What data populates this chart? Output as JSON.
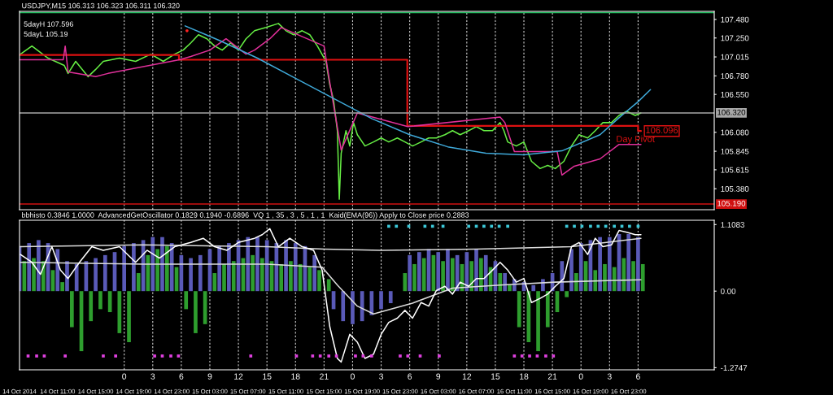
{
  "chart_data": [
    {
      "type": "line",
      "title": "USDJPY,M15 106.313 106.323 106.311 106.320",
      "annotations": [
        "5dayH 107.596",
        "5dayL 105.19",
        {
          "text": "106.096",
          "x": "2014-10-17T00:18",
          "y": 106.096
        }
      ],
      "xlim": [
        "2014-10-14T07:00",
        "2014-10-17T08:00"
      ],
      "ylim": [
        105.12,
        107.58
      ],
      "tick_labels": "y",
      "grid": "x",
      "yticks": [
        {
          "value": 107.48,
          "label": "107.480"
        },
        {
          "value": 107.25,
          "label": "107.250"
        },
        {
          "value": 107.015,
          "label": "107.015"
        },
        {
          "value": 106.78,
          "label": "106.780"
        },
        {
          "value": 106.55,
          "label": "106.550"
        },
        {
          "value": 106.08,
          "label": "106.080"
        },
        {
          "value": 105.845,
          "label": "105.845"
        },
        {
          "value": 105.615,
          "label": "105.615"
        },
        {
          "value": 105.38,
          "label": "105.380"
        }
      ],
      "ref_lines": [
        {
          "axis": "y",
          "value": 106.32,
          "label": "106.320",
          "color": "#a8a8a8"
        },
        {
          "axis": "y",
          "value": 105.19,
          "label": "105.190",
          "color": "#d01010"
        },
        {
          "axis": "y",
          "value": 107.565,
          "color": "#20c060"
        }
      ],
      "series": [
        {
          "color": "#66ee44",
          "x": [
            "2014-10-14T07:06",
            "2014-10-14T08:18",
            "2014-10-14T10:00",
            "2014-10-14T11:42",
            "2014-10-14T12:06",
            "2014-10-14T12:54",
            "2014-10-14T14:12",
            "2014-10-14T15:00",
            "2014-10-14T15:48",
            "2014-10-14T17:30",
            "2014-10-14T19:12",
            "2014-10-14T20:48",
            "2014-10-14T22:06",
            "2014-10-14T23:18",
            "2014-10-15T00:12",
            "2014-10-15T01:00",
            "2014-10-15T01:48",
            "2014-10-15T02:42",
            "2014-10-15T03:30",
            "2014-10-15T04:18",
            "2014-10-15T05:12",
            "2014-10-15T06:00",
            "2014-10-15T06:48",
            "2014-10-15T07:42",
            "2014-10-15T08:54",
            "2014-10-15T10:12",
            "2014-10-15T11:00",
            "2014-10-15T11:48",
            "2014-10-15T12:42",
            "2014-10-15T13:30",
            "2014-10-15T14:18",
            "2014-10-15T15:12",
            "2014-10-15T15:36",
            "2014-10-15T16:00",
            "2014-10-15T16:24",
            "2014-10-15T16:36",
            "2014-10-15T16:48",
            "2014-10-15T17:18",
            "2014-10-15T17:42",
            "2014-10-15T18:06",
            "2014-10-15T18:30",
            "2014-10-15T19:18",
            "2014-10-15T20:12",
            "2014-10-15T21:00",
            "2014-10-15T21:48",
            "2014-10-15T22:42",
            "2014-10-15T23:30",
            "2014-10-16T00:18",
            "2014-10-16T01:12",
            "2014-10-16T02:00",
            "2014-10-16T02:48",
            "2014-10-16T03:42",
            "2014-10-16T04:30",
            "2014-10-16T05:18",
            "2014-10-16T06:12",
            "2014-10-16T07:00",
            "2014-10-16T07:48",
            "2014-10-16T08:42",
            "2014-10-16T09:30",
            "2014-10-16T09:54",
            "2014-10-16T10:18",
            "2014-10-16T11:12",
            "2014-10-16T12:00",
            "2014-10-16T12:48",
            "2014-10-16T13:42",
            "2014-10-16T14:30",
            "2014-10-16T15:18",
            "2014-10-16T16:12",
            "2014-10-16T17:00",
            "2014-10-16T17:48",
            "2014-10-16T18:42",
            "2014-10-16T19:30",
            "2014-10-16T20:18",
            "2014-10-16T21:12",
            "2014-10-16T22:00",
            "2014-10-16T22:48",
            "2014-10-16T23:42",
            "2014-10-17T00:18"
          ],
          "values": [
            107.05,
            107.15,
            107.0,
            106.91,
            106.81,
            106.96,
            106.77,
            106.86,
            106.96,
            107.0,
            106.96,
            107.05,
            106.96,
            107.05,
            107.1,
            107.19,
            107.29,
            107.24,
            107.15,
            107.1,
            107.19,
            107.1,
            107.24,
            107.34,
            107.38,
            107.43,
            107.34,
            107.29,
            107.34,
            107.29,
            107.15,
            106.96,
            106.67,
            106.48,
            106.1,
            105.25,
            105.82,
            106.1,
            105.91,
            106.2,
            106.05,
            105.91,
            105.96,
            106.01,
            105.96,
            106.01,
            105.96,
            105.91,
            105.96,
            106.01,
            106.01,
            106.05,
            106.1,
            106.05,
            106.1,
            106.15,
            106.1,
            106.1,
            106.2,
            106.1,
            105.96,
            105.91,
            105.96,
            105.72,
            105.63,
            105.67,
            105.63,
            105.72,
            105.91,
            106.05,
            106.01,
            106.1,
            106.2,
            106.2,
            106.29,
            106.34,
            106.29,
            106.32
          ]
        },
        {
          "type": "step",
          "name": "Day Pivot",
          "color": "#dd1111",
          "x": [
            "2014-10-14T07:00",
            "2014-10-14T23:45",
            "2014-10-15T23:45",
            "2014-10-17T00:00",
            "2014-10-17T00:18"
          ],
          "values": [
            107.04,
            106.98,
            106.16,
            106.096,
            106.096
          ]
        },
        {
          "color": "#e0309a",
          "x": [
            "2014-10-14T07:00",
            "2014-10-14T11:36",
            "2014-10-14T11:48",
            "2014-10-14T12:06",
            "2014-10-14T15:00",
            "2014-10-14T16:18",
            "2014-10-14T23:48",
            "2014-10-15T01:00",
            "2014-10-15T03:00",
            "2014-10-15T04:42",
            "2014-10-15T06:48",
            "2014-10-15T07:42",
            "2014-10-15T09:18",
            "2014-10-15T10:30",
            "2014-10-15T15:00",
            "2014-10-15T15:30",
            "2014-10-15T16:48",
            "2014-10-15T18:30",
            "2014-10-15T23:48",
            "2014-10-16T09:30",
            "2014-10-16T10:00",
            "2014-10-16T11:00",
            "2014-10-16T15:30",
            "2014-10-16T16:00",
            "2014-10-16T17:18",
            "2014-10-16T20:00",
            "2014-10-16T22:00",
            "2014-10-17T00:18"
          ],
          "values": [
            106.98,
            106.98,
            107.15,
            106.83,
            106.77,
            106.81,
            106.98,
            107.02,
            107.1,
            107.24,
            107.05,
            107.1,
            107.24,
            107.38,
            107.15,
            106.77,
            105.86,
            106.32,
            106.15,
            106.27,
            106.2,
            105.84,
            105.84,
            105.55,
            105.66,
            105.75,
            105.93,
            105.93
          ]
        },
        {
          "color": "#3fa9d9",
          "x": [
            "2014-10-15T00:24",
            "2014-10-15T04:00",
            "2014-10-15T08:00",
            "2014-10-15T12:00",
            "2014-10-15T16:00",
            "2014-10-15T20:00",
            "2014-10-16T00:00",
            "2014-10-16T04:00",
            "2014-10-16T08:00",
            "2014-10-16T12:00",
            "2014-10-16T16:00",
            "2014-10-16T20:00",
            "2014-10-16T22:00",
            "2014-10-17T00:00",
            "2014-10-17T01:18"
          ],
          "values": [
            107.4,
            107.22,
            107.0,
            106.75,
            106.5,
            106.25,
            106.05,
            105.9,
            105.82,
            105.8,
            105.85,
            106.05,
            106.26,
            106.46,
            106.61
          ]
        },
        {
          "type": "scatter",
          "color": "#ff2020",
          "marker": "circle",
          "x": [
            "2014-10-15T00:36"
          ],
          "values": [
            107.34
          ]
        }
      ]
    },
    {
      "type": "bar",
      "title": "bbhisto 0.3846 1.0000  AdvancedGetOscillator 0.1829 0.1940 -0.6896  VQ 1 , 35 , 3 , 5 , 1 , 1  Kaid(EMA(96)) Apply to Close price 0.2883",
      "xlim": [
        "2014-10-14T07:00",
        "2014-10-17T08:00"
      ],
      "x2lim": [
        "2014-10-14T13:00",
        "2014-10-17T14:00"
      ],
      "ylim": [
        -1.31,
        1.18
      ],
      "grid": "x",
      "xticks": [
        {
          "value": "2014-10-14T07:00",
          "label": "14 Oct 2014"
        },
        {
          "value": "2014-10-14T11:00",
          "label": "14 Oct 11:00"
        },
        {
          "value": "2014-10-14T15:00",
          "label": "14 Oct 15:00"
        },
        {
          "value": "2014-10-14T19:00",
          "label": "14 Oct 19:00"
        },
        {
          "value": "2014-10-14T23:00",
          "label": "14 Oct 23:00"
        },
        {
          "value": "2014-10-15T03:00",
          "label": "15 Oct 03:00"
        },
        {
          "value": "2014-10-15T07:00",
          "label": "15 Oct 07:00"
        },
        {
          "value": "2014-10-15T11:00",
          "label": "15 Oct 11:00"
        },
        {
          "value": "2014-10-15T15:00",
          "label": "15 Oct 15:00"
        },
        {
          "value": "2014-10-15T19:00",
          "label": "15 Oct 19:00"
        },
        {
          "value": "2014-10-15T23:00",
          "label": "15 Oct 23:00"
        },
        {
          "value": "2014-10-16T03:00",
          "label": "16 Oct 03:00"
        },
        {
          "value": "2014-10-16T07:00",
          "label": "16 Oct 07:00"
        },
        {
          "value": "2014-10-16T11:00",
          "label": "16 Oct 11:00"
        },
        {
          "value": "2014-10-16T15:00",
          "label": "16 Oct 15:00"
        },
        {
          "value": "2014-10-16T19:00",
          "label": "16 Oct 19:00"
        },
        {
          "value": "2014-10-16T23:00",
          "label": "16 Oct 23:00"
        }
      ],
      "x2ticks": [
        {
          "value": "2014-10-15T00:00",
          "label": "0"
        },
        {
          "value": "2014-10-15T03:00",
          "label": "3"
        },
        {
          "value": "2014-10-15T06:00",
          "label": "6"
        },
        {
          "value": "2014-10-15T09:00",
          "label": "9"
        },
        {
          "value": "2014-10-15T12:00",
          "label": "12"
        },
        {
          "value": "2014-10-15T15:00",
          "label": "15"
        },
        {
          "value": "2014-10-15T18:00",
          "label": "18"
        },
        {
          "value": "2014-10-15T21:00",
          "label": "21"
        },
        {
          "value": "2014-10-16T00:00",
          "label": "0"
        },
        {
          "value": "2014-10-16T03:00",
          "label": "3"
        },
        {
          "value": "2014-10-16T06:00",
          "label": "6"
        },
        {
          "value": "2014-10-16T09:00",
          "label": "9"
        },
        {
          "value": "2014-10-16T12:00",
          "label": "12"
        },
        {
          "value": "2014-10-16T15:00",
          "label": "15"
        },
        {
          "value": "2014-10-16T18:00",
          "label": "18"
        },
        {
          "value": "2014-10-16T21:00",
          "label": "21"
        },
        {
          "value": "2014-10-17T00:00",
          "label": "0"
        },
        {
          "value": "2014-10-17T03:00",
          "label": "3"
        },
        {
          "value": "2014-10-17T06:00",
          "label": "6"
        }
      ],
      "yticks": [
        1.1083,
        {
          "value": 0,
          "label": "0.00"
        },
        -1.2747
      ],
      "series": [
        {
          "color": "#5a5ab8",
          "x": [
            "2014-10-14T07:00",
            "2014-10-14T08:00",
            "2014-10-14T09:00",
            "2014-10-14T10:00",
            "2014-10-14T11:00",
            "2014-10-14T12:00",
            "2014-10-14T13:00",
            "2014-10-14T14:00",
            "2014-10-14T15:00",
            "2014-10-14T16:00",
            "2014-10-14T17:00",
            "2014-10-14T18:00",
            "2014-10-14T19:00",
            "2014-10-14T20:00",
            "2014-10-14T21:00",
            "2014-10-14T22:00",
            "2014-10-14T23:00",
            "2014-10-15T00:00",
            "2014-10-15T01:00",
            "2014-10-15T02:00",
            "2014-10-15T03:00",
            "2014-10-15T04:00",
            "2014-10-15T05:00",
            "2014-10-15T06:00",
            "2014-10-15T07:00",
            "2014-10-15T08:00",
            "2014-10-15T09:00",
            "2014-10-15T10:00",
            "2014-10-15T11:00",
            "2014-10-15T12:00",
            "2014-10-15T13:00",
            "2014-10-15T14:00",
            "2014-10-15T15:00",
            "2014-10-15T16:00",
            "2014-10-15T17:00",
            "2014-10-15T18:00",
            "2014-10-15T19:00",
            "2014-10-15T20:00",
            "2014-10-15T21:00",
            "2014-10-15T22:00",
            "2014-10-15T23:00",
            "2014-10-16T00:00",
            "2014-10-16T01:00",
            "2014-10-16T02:00",
            "2014-10-16T03:00",
            "2014-10-16T04:00",
            "2014-10-16T05:00",
            "2014-10-16T06:00",
            "2014-10-16T07:00",
            "2014-10-16T08:00",
            "2014-10-16T09:00",
            "2014-10-16T10:00",
            "2014-10-16T11:00",
            "2014-10-16T12:00",
            "2014-10-16T13:00",
            "2014-10-16T14:00",
            "2014-10-16T15:00",
            "2014-10-16T16:00",
            "2014-10-16T17:00",
            "2014-10-16T18:00",
            "2014-10-16T19:00",
            "2014-10-16T20:00",
            "2014-10-16T21:00",
            "2014-10-16T22:00",
            "2014-10-16T23:00",
            "2014-10-17T00:00"
          ],
          "values": [
            0.75,
            0.8,
            0.85,
            0.8,
            0.7,
            0.5,
            0.45,
            0.5,
            0.55,
            0.6,
            0.65,
            0.75,
            0.8,
            0.85,
            0.9,
            0.9,
            0.8,
            0.6,
            0.55,
            0.6,
            0.7,
            0.75,
            0.8,
            0.85,
            0.9,
            0.9,
            0.85,
            0.8,
            0.85,
            0.8,
            0.75,
            0.6,
            null,
            -0.3,
            -0.5,
            -0.55,
            -0.5,
            -0.4,
            -0.3,
            -0.2,
            null,
            0.6,
            0.65,
            0.7,
            0.65,
            0.7,
            0.6,
            0.65,
            0.7,
            0.6,
            0.5,
            0.3,
            0.2,
            0.15,
            0.1,
            0.2,
            0.3,
            0.5,
            0.7,
            0.8,
            0.85,
            0.9,
            0.9,
            0.95,
            0.95,
            0.9
          ]
        },
        {
          "color": "#2e9e2e",
          "x": [
            "2014-10-14T07:30",
            "2014-10-14T08:30",
            "2014-10-14T09:30",
            "2014-10-14T10:30",
            "2014-10-14T11:30",
            "2014-10-14T12:30",
            "2014-10-14T13:30",
            "2014-10-14T14:30",
            "2014-10-14T15:30",
            "2014-10-14T16:30",
            "2014-10-14T17:30",
            "2014-10-14T18:30",
            "2014-10-14T19:30",
            "2014-10-14T20:30",
            "2014-10-14T21:30",
            "2014-10-14T22:30",
            "2014-10-14T23:30",
            "2014-10-15T00:30",
            "2014-10-15T01:30",
            "2014-10-15T02:30",
            "2014-10-15T03:30",
            "2014-10-15T04:30",
            "2014-10-15T05:30",
            "2014-10-15T06:30",
            "2014-10-15T07:30",
            "2014-10-15T08:30",
            "2014-10-15T09:30",
            "2014-10-15T10:30",
            "2014-10-15T11:30",
            "2014-10-15T12:30",
            "2014-10-15T13:30",
            "2014-10-15T14:30",
            "2014-10-15T15:30",
            "2014-10-15T16:30",
            "2014-10-15T17:30",
            "2014-10-15T18:30",
            "2014-10-15T19:30",
            "2014-10-15T20:30",
            "2014-10-15T21:30",
            "2014-10-15T22:30",
            "2014-10-15T23:30",
            "2014-10-16T00:30",
            "2014-10-16T01:30",
            "2014-10-16T02:30",
            "2014-10-16T03:30",
            "2014-10-16T04:30",
            "2014-10-16T05:30",
            "2014-10-16T06:30",
            "2014-10-16T07:30",
            "2014-10-16T08:30",
            "2014-10-16T09:30",
            "2014-10-16T10:30",
            "2014-10-16T11:30",
            "2014-10-16T12:30",
            "2014-10-16T13:30",
            "2014-10-16T14:30",
            "2014-10-16T15:30",
            "2014-10-16T16:30",
            "2014-10-16T17:30",
            "2014-10-16T18:30",
            "2014-10-16T19:30",
            "2014-10-16T20:30",
            "2014-10-16T21:30",
            "2014-10-16T22:30",
            "2014-10-16T23:30",
            "2014-10-17T00:30"
          ],
          "values": [
            0.5,
            0.55,
            0.5,
            0.35,
            0.15,
            -0.6,
            -1.0,
            -0.5,
            -0.3,
            -0.35,
            -0.7,
            -0.85,
            0.3,
            0.6,
            0.7,
            0.75,
            0.4,
            -0.3,
            -0.7,
            -0.55,
            0.3,
            0.45,
            0.5,
            0.55,
            0.6,
            0.55,
            0.5,
            0.45,
            0.5,
            0.45,
            0.4,
            0.35,
            0.2,
            null,
            null,
            null,
            null,
            null,
            null,
            null,
            0.3,
            0.45,
            0.55,
            0.6,
            0.5,
            0.55,
            0.45,
            0.5,
            0.55,
            0.4,
            0.3,
            0.1,
            -0.6,
            -0.85,
            -1.0,
            -0.6,
            -0.35,
            -0.1,
            0.3,
            0.5,
            0.35,
            0.45,
            0.4,
            0.55,
            0.5,
            0.45
          ]
        },
        {
          "type": "line",
          "color": "#dcdcdc",
          "x": [
            "2014-10-14T07:06",
            "2014-10-14T20:00",
            "2014-10-15T09:00",
            "2014-10-15T15:00",
            "2014-10-15T21:00",
            "2014-10-16T07:00",
            "2014-10-16T17:00",
            "2014-10-17T00:18"
          ],
          "values": [
            0.74,
            0.77,
            0.74,
            0.7,
            0.68,
            0.7,
            0.74,
            0.88
          ]
        },
        {
          "type": "line",
          "color": "#dcdcdc",
          "x": [
            "2014-10-14T07:06",
            "2014-10-14T20:00",
            "2014-10-15T09:00",
            "2014-10-15T14:48",
            "2014-10-15T16:24",
            "2014-10-15T18:30",
            "2014-10-15T20:12",
            "2014-10-16T00:18",
            "2014-10-16T04:30",
            "2014-10-16T09:30",
            "2014-10-16T15:18",
            "2014-10-17T00:18"
          ],
          "values": [
            0.48,
            0.45,
            0.45,
            0.4,
            0.1,
            -0.25,
            -0.38,
            -0.2,
            0.05,
            0.1,
            0.15,
            0.19
          ]
        },
        {
          "type": "line",
          "color": "#ffffff",
          "x": [
            "2014-10-14T07:06",
            "2014-10-14T08:18",
            "2014-10-14T09:12",
            "2014-10-14T10:24",
            "2014-10-14T11:18",
            "2014-10-14T12:06",
            "2014-10-14T13:18",
            "2014-10-14T14:36",
            "2014-10-14T15:48",
            "2014-10-14T17:30",
            "2014-10-14T19:12",
            "2014-10-14T20:24",
            "2014-10-14T21:42",
            "2014-10-14T23:18",
            "2014-10-15T01:00",
            "2014-10-15T02:18",
            "2014-10-15T03:30",
            "2014-10-15T04:48",
            "2014-10-15T06:00",
            "2014-10-15T07:42",
            "2014-10-15T08:30",
            "2014-10-15T09:18",
            "2014-10-15T10:12",
            "2014-10-15T11:24",
            "2014-10-15T12:42",
            "2014-10-15T13:54",
            "2014-10-15T14:48",
            "2014-10-15T15:36",
            "2014-10-15T16:24",
            "2014-10-15T16:48",
            "2014-10-15T17:42",
            "2014-10-15T18:30",
            "2014-10-15T19:18",
            "2014-10-15T20:12",
            "2014-10-15T21:00",
            "2014-10-15T21:48",
            "2014-10-15T22:42",
            "2014-10-15T23:30",
            "2014-10-16T00:18",
            "2014-10-16T01:12",
            "2014-10-16T02:00",
            "2014-10-16T02:48",
            "2014-10-16T03:42",
            "2014-10-16T04:30",
            "2014-10-16T05:18",
            "2014-10-16T06:12",
            "2014-10-16T07:00",
            "2014-10-16T07:48",
            "2014-10-16T08:42",
            "2014-10-16T09:30",
            "2014-10-16T10:18",
            "2014-10-16T11:12",
            "2014-10-16T12:00",
            "2014-10-16T12:48",
            "2014-10-16T13:42",
            "2014-10-16T14:30",
            "2014-10-16T15:18",
            "2014-10-16T16:12",
            "2014-10-16T17:00",
            "2014-10-16T17:48",
            "2014-10-16T18:42",
            "2014-10-16T19:30",
            "2014-10-16T20:18",
            "2014-10-16T21:12",
            "2014-10-16T22:00",
            "2014-10-16T22:48",
            "2014-10-16T23:42",
            "2014-10-17T00:18"
          ],
          "values": [
            0.61,
            0.48,
            0.28,
            0.74,
            0.35,
            0.21,
            0.48,
            0.74,
            0.68,
            0.74,
            0.48,
            0.68,
            0.55,
            0.74,
            0.81,
            0.88,
            0.74,
            0.68,
            0.81,
            0.88,
            0.94,
            1.04,
            0.74,
            0.88,
            0.74,
            0.68,
            0.35,
            -0.59,
            -1.12,
            -1.18,
            -0.72,
            -0.85,
            -1.12,
            -1.05,
            -0.72,
            -0.52,
            -0.45,
            -0.32,
            -0.45,
            -0.19,
            -0.25,
            0.01,
            0.08,
            -0.05,
            0.15,
            0.08,
            0.21,
            0.21,
            0.35,
            0.48,
            0.35,
            0.15,
            0.21,
            -0.19,
            -0.12,
            -0.05,
            0.08,
            0.21,
            0.74,
            0.81,
            0.61,
            0.88,
            0.74,
            0.77,
            1.01,
            0.98,
            0.94,
            0.94
          ]
        },
        {
          "type": "scatter",
          "color": "#3cc8d8",
          "marker": "square",
          "x": [
            "2014-10-15T21:48",
            "2014-10-15T22:36",
            "2014-10-15T23:54",
            "2014-10-16T01:36",
            "2014-10-16T02:24",
            "2014-10-16T03:30",
            "2014-10-16T06:12",
            "2014-10-16T07:00",
            "2014-10-16T07:48",
            "2014-10-16T08:36",
            "2014-10-16T09:24",
            "2014-10-16T10:18",
            "2014-10-16T16:30",
            "2014-10-16T17:18",
            "2014-10-16T18:06",
            "2014-10-16T19:00",
            "2014-10-16T19:48",
            "2014-10-16T20:36",
            "2014-10-16T21:30",
            "2014-10-16T22:18",
            "2014-10-16T23:06",
            "2014-10-17T00:00"
          ],
          "values": [
            1.08,
            1.08,
            1.08,
            1.08,
            1.08,
            1.08,
            1.08,
            1.08,
            1.08,
            1.08,
            1.08,
            1.08,
            1.08,
            1.08,
            1.08,
            1.08,
            1.08,
            1.08,
            1.08,
            1.08,
            1.08,
            1.08
          ]
        },
        {
          "type": "scatter",
          "color": "#e040e0",
          "marker": "square",
          "x": [
            "2014-10-14T07:54",
            "2014-10-14T08:48",
            "2014-10-14T09:36",
            "2014-10-14T11:48",
            "2014-10-14T15:48",
            "2014-10-14T17:06",
            "2014-10-14T21:12",
            "2014-10-14T22:00",
            "2014-10-14T22:54",
            "2014-10-14T23:42",
            "2014-10-15T07:18",
            "2014-10-15T12:06",
            "2014-10-15T13:48",
            "2014-10-15T14:36",
            "2014-10-15T15:30",
            "2014-10-15T16:18",
            "2014-10-15T18:18",
            "2014-10-15T19:06",
            "2014-10-15T20:00",
            "2014-10-15T23:00",
            "2014-10-15T23:48",
            "2014-10-16T01:06",
            "2014-10-16T03:06",
            "2014-10-16T11:00",
            "2014-10-16T11:48",
            "2014-10-16T12:36",
            "2014-10-16T13:24",
            "2014-10-16T14:18",
            "2014-10-16T15:06"
          ],
          "values": [
            -1.08,
            -1.08,
            -1.08,
            -1.08,
            -1.08,
            -1.08,
            -1.08,
            -1.08,
            -1.08,
            -1.08,
            -1.08,
            -1.08,
            -1.08,
            -1.08,
            -1.08,
            -1.08,
            -1.08,
            -1.08,
            -1.08,
            -1.08,
            -1.08,
            -1.08,
            -1.08,
            -1.08,
            -1.08,
            -1.08,
            -1.08,
            -1.08,
            -1.08
          ]
        }
      ]
    }
  ]
}
